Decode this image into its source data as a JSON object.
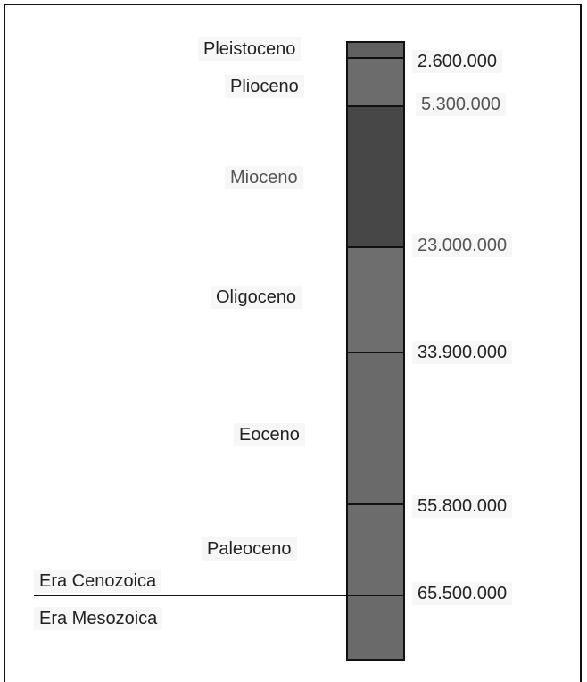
{
  "eras": {
    "upper": "Era Cenozoica",
    "lower": "Era Mesozoica"
  },
  "epochs": [
    {
      "name": "Pleistoceno",
      "fill": "#606060"
    },
    {
      "name": "Plioceno",
      "fill": "#6c6c6c"
    },
    {
      "name": "Mioceno",
      "fill": "#474747"
    },
    {
      "name": "Oligoceno",
      "fill": "#6e6e6e"
    },
    {
      "name": "Eoceno",
      "fill": "#6a6a6a"
    },
    {
      "name": "Paleoceno",
      "fill": "#6c6c6c"
    },
    {
      "name": "",
      "fill": "#6a6a6a"
    }
  ],
  "boundaries": [
    "2.600.000",
    "5.300.000",
    "23.000.000",
    "33.900.000",
    "55.800.000",
    "65.500.000"
  ]
}
